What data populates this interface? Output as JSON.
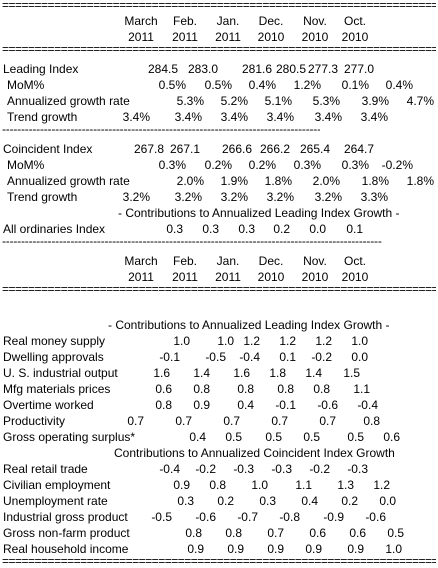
{
  "rule_equals": "================================================================================",
  "rule_dashes": "----------------------------------------------------------------------------------------------------",
  "header": {
    "months": [
      "March",
      "Feb.",
      "Jan.",
      "Dec.",
      "Nov.",
      "Oct."
    ],
    "years": [
      "2011",
      "2011",
      "2011",
      "2010",
      "2010",
      "2010"
    ]
  },
  "leading": {
    "title": "Leading Index",
    "values": [
      "284.5",
      "283.0",
      "281.6",
      "280.5",
      "277.3",
      "277.0"
    ],
    "mom_label": "MoM%",
    "mom": [
      "0.5%",
      "0.5%",
      "0.4%",
      "1.2%",
      "0.1%",
      "0.4%"
    ],
    "agr_label": "Annualized growth rate",
    "agr": [
      "5.3%",
      "5.2%",
      "5.1%",
      "5.3%",
      "3.9%",
      "4.7%"
    ],
    "trend_label": "Trend growth",
    "trend": [
      "3.4%",
      "3.4%",
      "3.4%",
      "3.4%",
      "3.4%",
      "3.4%"
    ]
  },
  "coincident": {
    "title": "Coincident Index",
    "values": [
      "267.8",
      "267.1",
      "266.6",
      "266.2",
      "265.4",
      "264.7"
    ],
    "mom_label": "MoM%",
    "mom": [
      "0.3%",
      "0.2%",
      "0.2%",
      "0.3%",
      "0.3%",
      "-0.2%"
    ],
    "agr_label": "Annualized growth rate",
    "agr": [
      "2.0%",
      "1.9%",
      "1.8%",
      "2.0%",
      "1.8%",
      "1.8%"
    ],
    "trend_label": "Trend growth",
    "trend": [
      "3.2%",
      "3.2%",
      "3.2%",
      "3.2%",
      "3.2%",
      "3.3%"
    ]
  },
  "contrib_leading_heading": "- Contributions to Annualized Leading Index Growth -",
  "all_ordinaries": {
    "label": "All ordinaries Index",
    "values": [
      "0.3",
      "0.3",
      "0.3",
      "0.2",
      "0.0",
      "0.1"
    ]
  },
  "leading_components": [
    {
      "label": "Real money supply",
      "values": [
        "1.0",
        "1.0",
        "1.2",
        "1.2",
        "1.2",
        "1.0"
      ]
    },
    {
      "label": "Dwelling approvals",
      "values": [
        "-0.1",
        "-0.5",
        "-0.4",
        "0.1",
        "-0.2",
        "0.0"
      ]
    },
    {
      "label": "U. S. industrial output",
      "values": [
        "1.6",
        "1.4",
        "1.6",
        "1.8",
        "1.4",
        "1.5"
      ]
    },
    {
      "label": "Mfg materials prices",
      "values": [
        "0.6",
        "0.8",
        "0.8",
        "0.8",
        "0.8",
        "1.1"
      ]
    },
    {
      "label": "Overtime worked",
      "values": [
        "0.8",
        "0.9",
        "0.4",
        "-0.1",
        "-0.6",
        "-0.4"
      ]
    },
    {
      "label": "Productivity",
      "values": [
        "0.7",
        "0.7",
        "0.7",
        "0.7",
        "0.7",
        "0.8"
      ]
    },
    {
      "label": "Gross operating surplus*",
      "values": [
        "0.4",
        "0.5",
        "0.5",
        "0.5",
        "0.5",
        "0.6"
      ]
    }
  ],
  "contrib_coincident_heading": "Contributions to Annualized Coincident Index Growth",
  "coincident_components": [
    {
      "label": "Real retail trade",
      "values": [
        "-0.4",
        "-0.2",
        "-0.3",
        "-0.3",
        "-0.2",
        "-0.3"
      ]
    },
    {
      "label": "Civilian employment",
      "values": [
        "0.9",
        "0.8",
        "1.0",
        "1.1",
        "1.3",
        "1.2"
      ]
    },
    {
      "label": "Unemployment rate",
      "values": [
        "0.3",
        "0.2",
        "0.3",
        "0.4",
        "0.2",
        "0.0"
      ]
    },
    {
      "label": "Industrial gross product",
      "values": [
        "-0.5",
        "-0.6",
        "-0.7",
        "-0.8",
        "-0.9",
        "-0.6"
      ]
    },
    {
      "label": "Gross non-farm product",
      "values": [
        "0.8",
        "0.8",
        "0.7",
        "0.6",
        "0.6",
        "0.5"
      ]
    },
    {
      "label": "Real household income",
      "values": [
        "0.9",
        "0.9",
        "0.9",
        "0.9",
        "0.9",
        "1.0"
      ]
    }
  ]
}
